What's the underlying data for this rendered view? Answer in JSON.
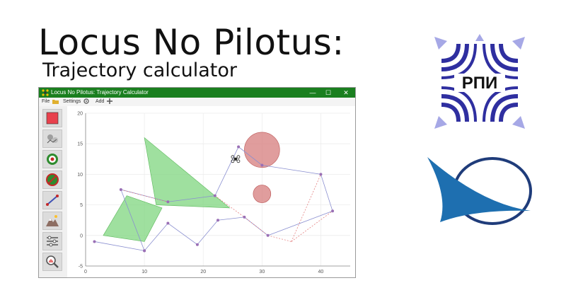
{
  "slide": {
    "title": "Locus No Pilotus:",
    "subtitle": "Trajectory calculator",
    "logo_text": "РПИ"
  },
  "window": {
    "title": "Locus No Pilotus: Trajectory Calculator",
    "controls": {
      "minimize": "—",
      "maximize": "☐",
      "close": "✕"
    },
    "menu": {
      "file": "File",
      "settings": "Settings",
      "add": "Add"
    }
  },
  "toolbar": {
    "tools": [
      {
        "name": "red-zone-tool",
        "icon": "red-square-icon"
      },
      {
        "name": "waypoints-tool",
        "icon": "map-pins-icon"
      },
      {
        "name": "target-tool",
        "icon": "target-icon"
      },
      {
        "name": "no-entry-tool",
        "icon": "forbidden-zone-icon"
      },
      {
        "name": "path-tool",
        "icon": "line-segment-icon"
      },
      {
        "name": "terrain-tool",
        "icon": "mountains-icon"
      },
      {
        "name": "settings-sliders-tool",
        "icon": "sliders-icon"
      },
      {
        "name": "search-map-tool",
        "icon": "magnifier-home-icon"
      }
    ]
  },
  "chart_data": {
    "type": "scatter",
    "xlim": [
      0,
      45
    ],
    "ylim": [
      -5,
      20
    ],
    "x_ticks": [
      0,
      10,
      20,
      30,
      40
    ],
    "y_ticks": [
      -5,
      0,
      5,
      10,
      15,
      20
    ],
    "grid": true,
    "colors": {
      "route": "#8a8fd0",
      "dashed": "#e07070",
      "polygon": "#7fd67f",
      "circle": "#d88585",
      "point": "#9a6fb5"
    },
    "route_points": [
      {
        "x": 1.5,
        "y": -1
      },
      {
        "x": 10,
        "y": -2.5
      },
      {
        "x": 6,
        "y": 7.5
      },
      {
        "x": 14,
        "y": 5.5
      },
      {
        "x": 22,
        "y": 6.5
      },
      {
        "x": 26,
        "y": 14.5
      },
      {
        "x": 30,
        "y": 11.5
      },
      {
        "x": 40,
        "y": 10
      },
      {
        "x": 42,
        "y": 4
      },
      {
        "x": 31,
        "y": 0
      },
      {
        "x": 27,
        "y": 3
      },
      {
        "x": 22.5,
        "y": 2.5
      },
      {
        "x": 19,
        "y": -1.5
      },
      {
        "x": 14,
        "y": 2
      },
      {
        "x": 10,
        "y": -2.5
      }
    ],
    "dashed_segments": [
      [
        [
          6,
          7.5
        ],
        [
          14,
          5.5
        ]
      ],
      [
        [
          22,
          6.5
        ],
        [
          27,
          3
        ]
      ],
      [
        [
          27,
          3
        ],
        [
          31,
          0
        ]
      ],
      [
        [
          31,
          0
        ],
        [
          35,
          -1
        ]
      ],
      [
        [
          35,
          -1
        ],
        [
          40,
          10
        ]
      ],
      [
        [
          35,
          -1
        ],
        [
          42,
          4
        ]
      ]
    ],
    "polygons": [
      [
        [
          10,
          16
        ],
        [
          24.5,
          4.5
        ],
        [
          12,
          5
        ]
      ],
      [
        [
          3,
          0
        ],
        [
          7,
          6.5
        ],
        [
          13,
          4.5
        ],
        [
          10,
          -1
        ]
      ]
    ],
    "circles": [
      {
        "x": 30,
        "y": 14,
        "r": 3
      },
      {
        "x": 30,
        "y": 6.8,
        "r": 1.5
      }
    ],
    "drone": {
      "x": 25.5,
      "y": 12.5
    }
  }
}
